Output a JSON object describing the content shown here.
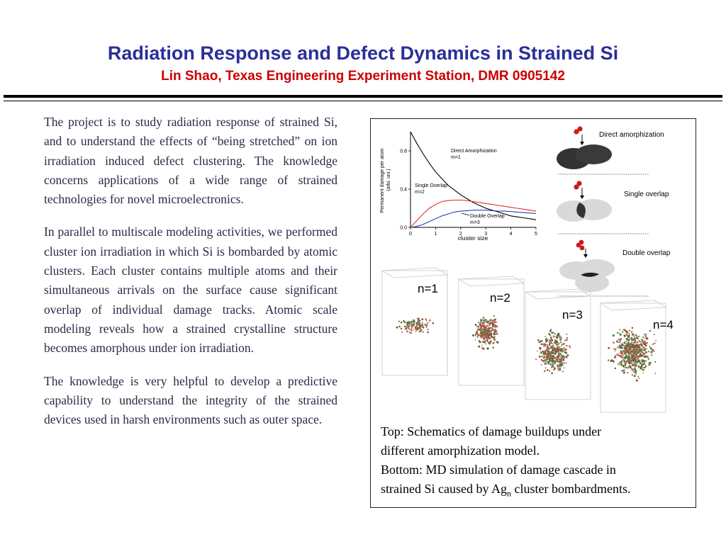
{
  "header": {
    "title": "Radiation Response and Defect Dynamics in Strained Si",
    "subtitle": "Lin Shao, Texas Engineering Experiment Station, DMR 0905142"
  },
  "body": {
    "paragraphs": [
      "The project is to study radiation response of strained Si, and to understand the effects of “being stretched” on ion irradiation induced defect clustering. The knowledge concerns applications of a wide range of strained technologies for novel microelectronics.",
      "In parallel to multiscale modeling activities, we performed cluster ion irradiation in which Si is bombarded by atomic clusters. Each cluster  contains multiple atoms and their simultaneous arrivals on the surface cause significant overlap of individual damage tracks. Atomic scale modeling reveals how a strained crystalline structure becomes amorphous under ion irradiation.",
      "The knowledge is very helpful to develop a predictive capability to understand the integrity of the strained devices used in harsh environments such as outer space."
    ]
  },
  "figure": {
    "schematics": {
      "labels": [
        "Direct amorphization",
        "Single overlap",
        "Double overlap"
      ]
    },
    "md_panels": {
      "labels": [
        "n=1",
        "n=2",
        "n=3",
        "n=4"
      ]
    },
    "caption": {
      "line1": "Top: Schematics of damage buildups under",
      "line2": "different amorphization model.",
      "line3": "Bottom: MD simulation of damage cascade in",
      "line4_pre": "strained Si caused by Ag",
      "line4_sub": "n",
      "line4_post": " cluster bombardments."
    }
  },
  "chart_data": {
    "type": "line",
    "xlabel": "cluster size",
    "ylabel": "Permanent damage per atom (arbi. uni.)",
    "xlim": [
      0,
      5
    ],
    "ylim": [
      0,
      1
    ],
    "xticks": [
      "0",
      "1",
      "2",
      "3",
      "4",
      "5"
    ],
    "yticks": [
      "0.0",
      "0.4",
      "0.8"
    ],
    "x": [
      0,
      0.25,
      0.5,
      0.75,
      1,
      1.25,
      1.5,
      1.75,
      2,
      2.25,
      2.5,
      2.75,
      3,
      3.25,
      3.5,
      3.75,
      4,
      4.25,
      4.5,
      4.75,
      5
    ],
    "series": [
      {
        "name": "Direct Amorphization",
        "name_line2": "m=1",
        "color": "#000000",
        "values": [
          1.0,
          0.88,
          0.77,
          0.67,
          0.58,
          0.51,
          0.44,
          0.39,
          0.34,
          0.3,
          0.26,
          0.23,
          0.2,
          0.18,
          0.16,
          0.14,
          0.12,
          0.11,
          0.1,
          0.09,
          0.08
        ]
      },
      {
        "name": "Single Overlap",
        "name_line2": "m=2",
        "color": "#e03030",
        "values": [
          0.0,
          0.07,
          0.14,
          0.2,
          0.24,
          0.27,
          0.28,
          0.285,
          0.285,
          0.28,
          0.27,
          0.26,
          0.25,
          0.24,
          0.23,
          0.22,
          0.21,
          0.2,
          0.19,
          0.18,
          0.17
        ]
      },
      {
        "name": "Double Overlap",
        "name_line2": "m=3",
        "color": "#2d3fc2",
        "values": [
          0.0,
          0.01,
          0.03,
          0.06,
          0.09,
          0.12,
          0.14,
          0.16,
          0.17,
          0.175,
          0.18,
          0.18,
          0.18,
          0.175,
          0.17,
          0.17,
          0.165,
          0.16,
          0.155,
          0.15,
          0.145
        ]
      }
    ]
  }
}
